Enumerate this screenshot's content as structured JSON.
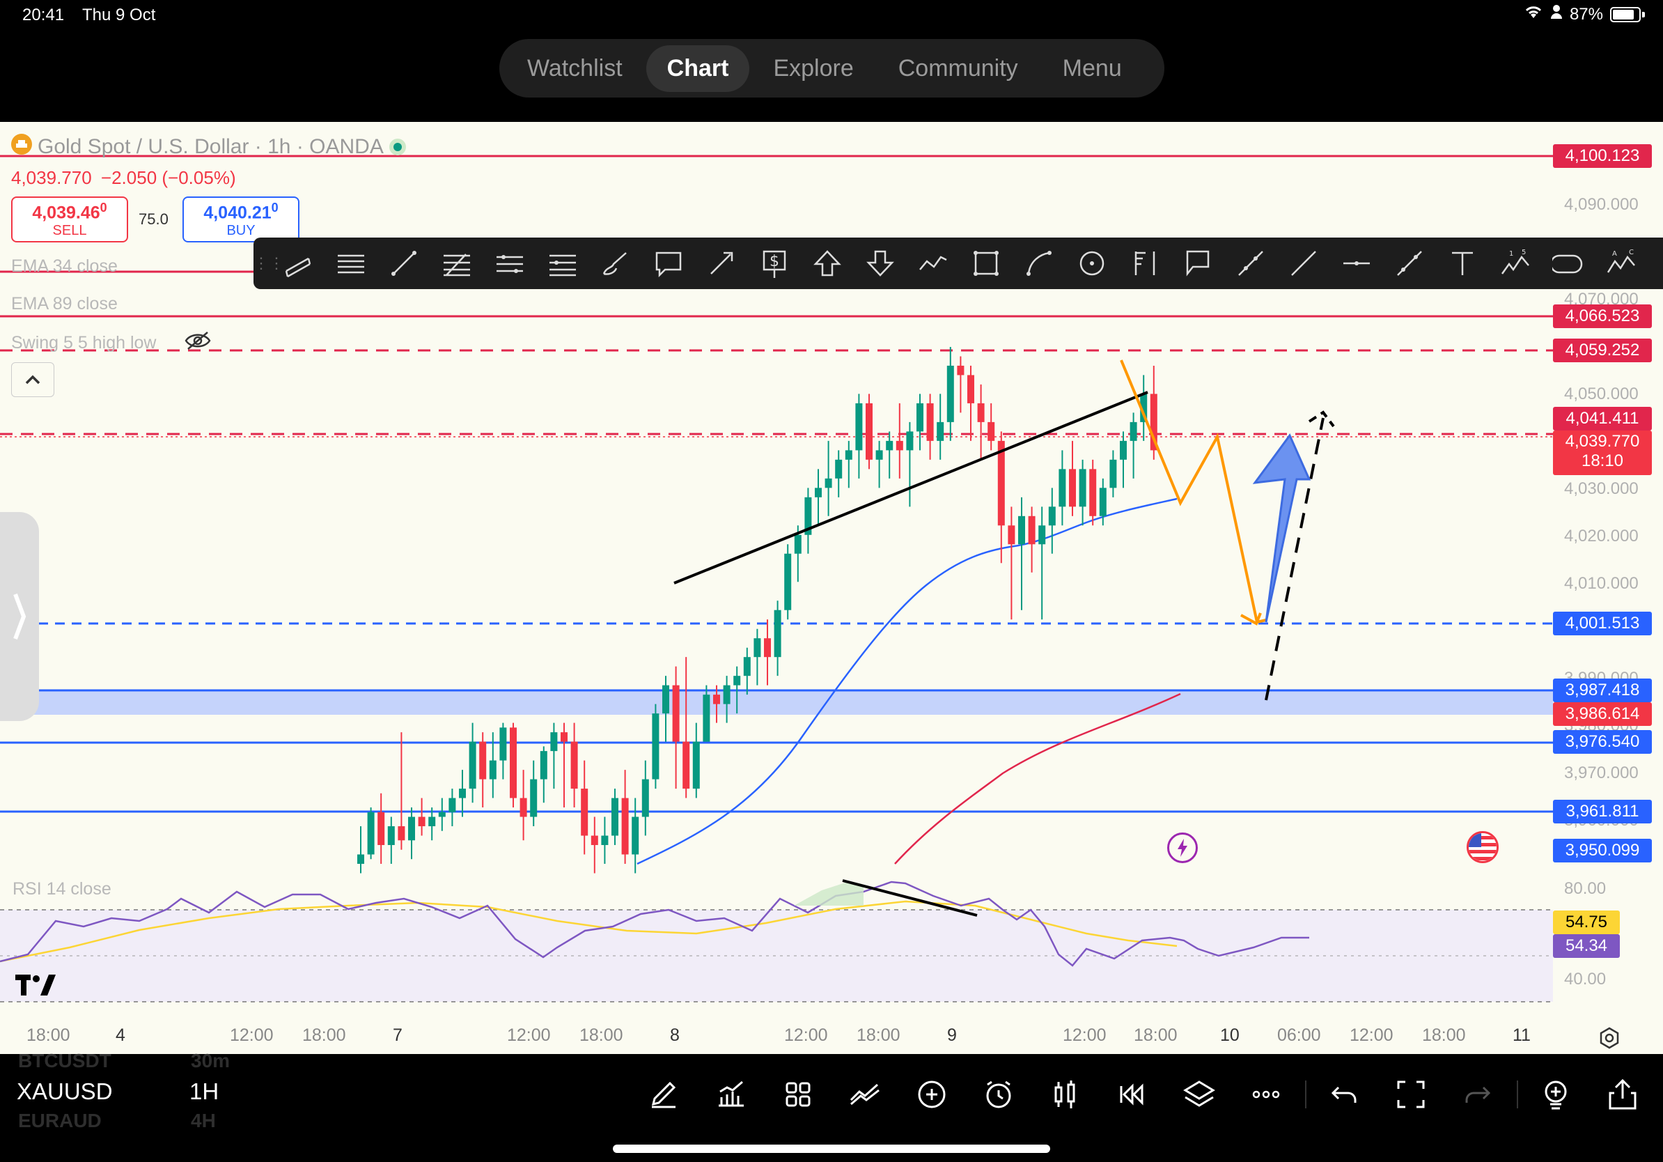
{
  "status_bar": {
    "time": "20:41",
    "date": "Thu 9 Oct",
    "battery": "87%"
  },
  "nav": {
    "tabs": [
      "Watchlist",
      "Chart",
      "Explore",
      "Community",
      "Menu"
    ],
    "active": "Chart"
  },
  "legend": {
    "title": "Gold Spot / U.S. Dollar · 1h · OANDA",
    "last_price": "4,039.770",
    "change": "−2.050 (−0.05%)",
    "sell_price": "4,039.46",
    "sell_sup": "0",
    "sell_label": "SELL",
    "spread": "75.0",
    "buy_price": "4,040.21",
    "buy_sup": "0",
    "buy_label": "BUY",
    "indicators": [
      "EMA 34 close",
      "EMA 89 close",
      "Swing 5 5 high low"
    ],
    "rsi_label": "RSI 14 close"
  },
  "price_axis": [
    "4,090.000",
    "4,070.000",
    "4,050.000",
    "4,030.000",
    "4,020.000",
    "4,010.000",
    "3,990.000",
    "3,980.000",
    "3,970.000",
    "3,960.000",
    "80.00",
    "40.00"
  ],
  "price_labels": [
    {
      "text": "4,100.123",
      "color": "#e1264c"
    },
    {
      "text": "4,066.523",
      "color": "#e1264c"
    },
    {
      "text": "4,059.252",
      "color": "#e1264c"
    },
    {
      "text": "4,041.411",
      "color": "#e1264c"
    },
    {
      "text": "4,039.770",
      "color": "#f23645"
    },
    {
      "text": "18:10",
      "color": "#f23645"
    },
    {
      "text": "4,001.513",
      "color": "#2962ff"
    },
    {
      "text": "3,987.418",
      "color": "#2962ff"
    },
    {
      "text": "3,986.614",
      "color": "#f23645"
    },
    {
      "text": "3,976.540",
      "color": "#2962ff"
    },
    {
      "text": "3,961.811",
      "color": "#2962ff"
    },
    {
      "text": "3,950.099",
      "color": "#2962ff"
    },
    {
      "text": "54.75",
      "color": "#fcd535"
    },
    {
      "text": "54.34",
      "color": "#7e57c2"
    }
  ],
  "time_axis": [
    "18:00",
    "4",
    "12:00",
    "18:00",
    "7",
    "12:00",
    "18:00",
    "8",
    "12:00",
    "18:00",
    "9",
    "12:00",
    "18:00",
    "10",
    "06:00",
    "12:00",
    "18:00",
    "11"
  ],
  "bottom_bar": {
    "symbol": "XAUUSD",
    "interval": "1H",
    "ghost_symbols": [
      "BTCUSDT",
      "EURAUD"
    ],
    "ghost_intervals": [
      "30m",
      "4H"
    ]
  },
  "colors": {
    "bull": "#089981",
    "bear": "#f23645",
    "background": "#fbfbf1",
    "ema34": "#2962ff",
    "ema89": "#e1264c",
    "rsi": "#7e57c2",
    "rsi_ma": "#fcd535"
  },
  "chart_data": {
    "type": "candlestick",
    "ylim": [
      3950,
      4104
    ],
    "candles": [
      [
        3950,
        3958,
        3948,
        3952
      ],
      [
        3952,
        3962,
        3951,
        3961
      ],
      [
        3961,
        3965,
        3950,
        3954
      ],
      [
        3954,
        3960,
        3950,
        3958
      ],
      [
        3958,
        3978,
        3953,
        3955
      ],
      [
        3955,
        3962,
        3951,
        3960
      ],
      [
        3960,
        3964,
        3956,
        3958
      ],
      [
        3958,
        3962,
        3955,
        3960
      ],
      [
        3960,
        3964,
        3957,
        3961
      ],
      [
        3961,
        3966,
        3958,
        3964
      ],
      [
        3964,
        3970,
        3960,
        3966
      ],
      [
        3966,
        3980,
        3963,
        3976
      ],
      [
        3976,
        3978,
        3962,
        3968
      ],
      [
        3968,
        3978,
        3964,
        3972
      ],
      [
        3972,
        3980,
        3968,
        3979
      ],
      [
        3979,
        3980,
        3962,
        3964
      ],
      [
        3964,
        3970,
        3955,
        3960
      ],
      [
        3960,
        3972,
        3958,
        3968
      ],
      [
        3968,
        3975,
        3963,
        3974
      ],
      [
        3974,
        3980,
        3966,
        3978
      ],
      [
        3978,
        3980,
        3962,
        3976
      ],
      [
        3976,
        3980,
        3962,
        3966
      ],
      [
        3966,
        3972,
        3952,
        3956
      ],
      [
        3956,
        3960,
        3948,
        3954
      ],
      [
        3954,
        3960,
        3950,
        3956
      ],
      [
        3956,
        3966,
        3954,
        3964
      ],
      [
        3964,
        3970,
        3950,
        3952
      ],
      [
        3952,
        3964,
        3948,
        3960
      ],
      [
        3960,
        3972,
        3956,
        3968
      ],
      [
        3968,
        3984,
        3966,
        3982
      ],
      [
        3982,
        3990,
        3976,
        3988
      ],
      [
        3988,
        3992,
        3966,
        3976
      ],
      [
        3976,
        3994,
        3964,
        3966
      ],
      [
        3966,
        3980,
        3964,
        3976
      ],
      [
        3976,
        3988,
        3976,
        3986
      ],
      [
        3986,
        3988,
        3980,
        3984
      ],
      [
        3984,
        3990,
        3980,
        3988
      ],
      [
        3988,
        3992,
        3982,
        3990
      ],
      [
        3990,
        3996,
        3986,
        3994
      ],
      [
        3994,
        4000,
        3988,
        3998
      ],
      [
        3998,
        4002,
        3988,
        3994
      ],
      [
        3994,
        4006,
        3990,
        4004
      ],
      [
        4004,
        4018,
        4002,
        4016
      ],
      [
        4016,
        4022,
        4010,
        4020
      ],
      [
        4020,
        4030,
        4016,
        4028
      ],
      [
        4028,
        4034,
        4022,
        4030
      ],
      [
        4030,
        4040,
        4024,
        4032
      ],
      [
        4032,
        4038,
        4028,
        4036
      ],
      [
        4036,
        4040,
        4030,
        4038
      ],
      [
        4038,
        4050,
        4032,
        4048
      ],
      [
        4048,
        4050,
        4034,
        4036
      ],
      [
        4036,
        4040,
        4030,
        4038
      ],
      [
        4038,
        4042,
        4032,
        4040
      ],
      [
        4040,
        4048,
        4032,
        4038
      ],
      [
        4038,
        4044,
        4026,
        4042
      ],
      [
        4042,
        4050,
        4038,
        4048
      ],
      [
        4048,
        4050,
        4036,
        4040
      ],
      [
        4040,
        4050,
        4036,
        4044
      ],
      [
        4044,
        4060,
        4040,
        4056
      ],
      [
        4056,
        4058,
        4046,
        4054
      ],
      [
        4054,
        4056,
        4040,
        4048
      ],
      [
        4048,
        4052,
        4036,
        4044
      ],
      [
        4044,
        4048,
        4038,
        4040
      ],
      [
        4040,
        4042,
        4014,
        4022
      ],
      [
        4022,
        4026,
        4002,
        4018
      ],
      [
        4018,
        4028,
        4004,
        4024
      ],
      [
        4024,
        4026,
        4012,
        4018
      ],
      [
        4018,
        4026,
        4002,
        4022
      ],
      [
        4022,
        4030,
        4016,
        4026
      ],
      [
        4026,
        4038,
        4022,
        4034
      ],
      [
        4034,
        4040,
        4024,
        4026
      ],
      [
        4026,
        4036,
        4022,
        4034
      ],
      [
        4034,
        4036,
        4022,
        4024
      ],
      [
        4024,
        4032,
        4022,
        4030
      ],
      [
        4030,
        4038,
        4028,
        4036
      ],
      [
        4036,
        4042,
        4030,
        4040
      ],
      [
        4040,
        4046,
        4032,
        4044
      ],
      [
        4044,
        4054,
        4040,
        4050
      ],
      [
        4050,
        4056,
        4036,
        4038
      ]
    ]
  }
}
